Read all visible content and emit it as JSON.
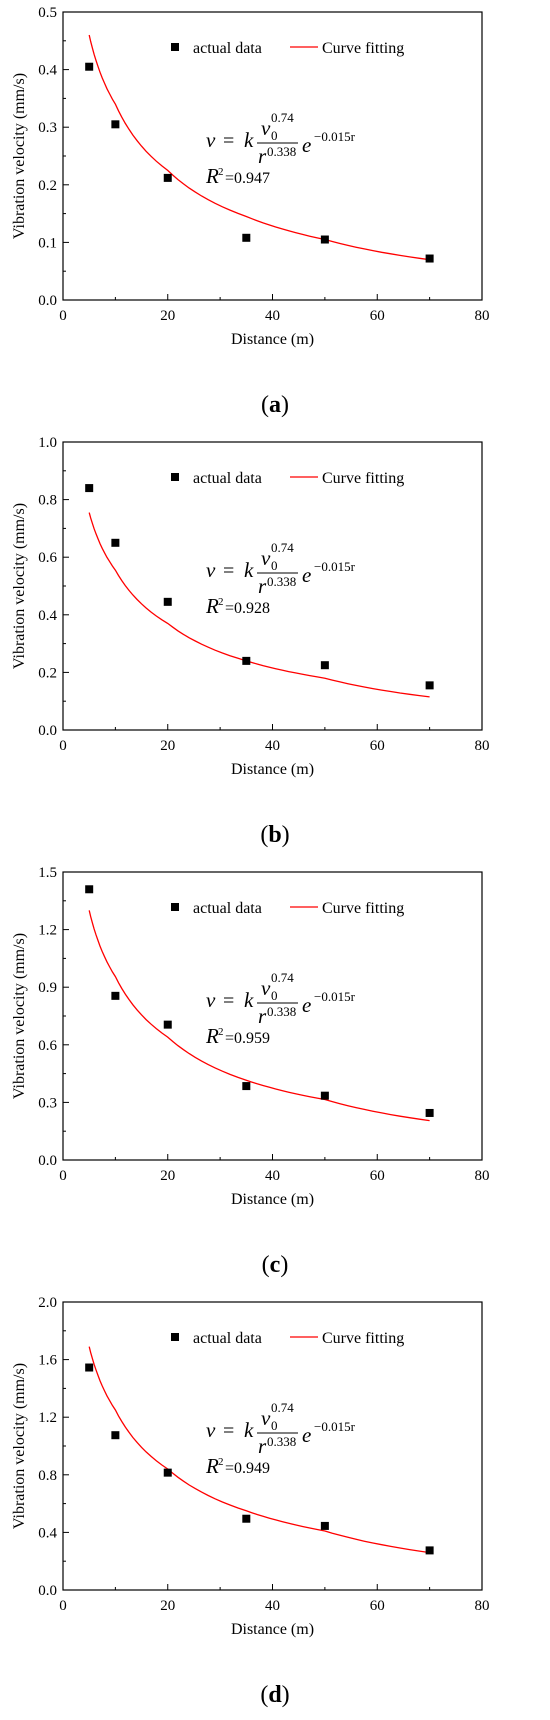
{
  "chart_data": [
    {
      "type": "scatter",
      "panel_label": "a",
      "xlabel": "Distance (m)",
      "ylabel": "Vibration velocity (mm/s)",
      "xlim": [
        0,
        80
      ],
      "ylim": [
        0,
        0.5
      ],
      "xticks": [
        "0",
        "20",
        "40",
        "60",
        "80"
      ],
      "yticks": [
        "0.0",
        "0.1",
        "0.2",
        "0.3",
        "0.4",
        "0.5"
      ],
      "legend_position": "top-right",
      "legend": [
        "actual data",
        "Curve fitting"
      ],
      "series": [
        {
          "name": "actual data",
          "marker": "square",
          "color": "#000000",
          "x": [
            5,
            10,
            20,
            35,
            50,
            70
          ],
          "y": [
            0.405,
            0.305,
            0.212,
            0.108,
            0.105,
            0.072
          ]
        },
        {
          "name": "Curve fitting",
          "line": true,
          "color": "#ff0000",
          "x": [
            5,
            10,
            20,
            35,
            50,
            70
          ],
          "y": [
            0.46,
            0.34,
            0.225,
            0.145,
            0.105,
            0.07
          ]
        }
      ],
      "equation": {
        "v": "v",
        "equals": "=",
        "k": "k",
        "num_base": "v",
        "num_sub": "0",
        "num_exp": "0.74",
        "den_base": "r",
        "den_exp": "0.338",
        "e": "e",
        "e_exp": "−0.015r"
      },
      "r2_label": "R",
      "r2_sup": "2",
      "r2_value": "=0.947"
    },
    {
      "type": "scatter",
      "panel_label": "b",
      "xlabel": "Distance (m)",
      "ylabel": "Vibration velocity (mm/s)",
      "xlim": [
        0,
        80
      ],
      "ylim": [
        0,
        1.0
      ],
      "xticks": [
        "0",
        "20",
        "40",
        "60",
        "80"
      ],
      "yticks": [
        "0.0",
        "0.2",
        "0.4",
        "0.6",
        "0.8",
        "1.0"
      ],
      "legend_position": "top-right",
      "legend": [
        "actual data",
        "Curve fitting"
      ],
      "series": [
        {
          "name": "actual data",
          "marker": "square",
          "color": "#000000",
          "x": [
            5,
            10,
            20,
            35,
            50,
            70
          ],
          "y": [
            0.84,
            0.65,
            0.445,
            0.24,
            0.225,
            0.155
          ]
        },
        {
          "name": "Curve fitting",
          "line": true,
          "color": "#ff0000",
          "x": [
            5,
            10,
            20,
            35,
            50,
            70
          ],
          "y": [
            0.755,
            0.555,
            0.37,
            0.24,
            0.18,
            0.115
          ]
        }
      ],
      "equation": {
        "v": "v",
        "equals": "=",
        "k": "k",
        "num_base": "v",
        "num_sub": "0",
        "num_exp": "0.74",
        "den_base": "r",
        "den_exp": "0.338",
        "e": "e",
        "e_exp": "−0.015r"
      },
      "r2_label": "R",
      "r2_sup": "2",
      "r2_value": "=0.928"
    },
    {
      "type": "scatter",
      "panel_label": "c",
      "xlabel": "Distance (m)",
      "ylabel": "Vibration velocity (mm/s)",
      "xlim": [
        0,
        80
      ],
      "ylim": [
        0,
        1.5
      ],
      "xticks": [
        "0",
        "20",
        "40",
        "60",
        "80"
      ],
      "yticks": [
        "0.0",
        "0.3",
        "0.6",
        "0.9",
        "1.2",
        "1.5"
      ],
      "legend_position": "top-right",
      "legend": [
        "actual data",
        "Curve fitting"
      ],
      "series": [
        {
          "name": "actual data",
          "marker": "square",
          "color": "#000000",
          "x": [
            5,
            10,
            20,
            35,
            50,
            70
          ],
          "y": [
            1.41,
            0.855,
            0.705,
            0.385,
            0.335,
            0.245
          ]
        },
        {
          "name": "Curve fitting",
          "line": true,
          "color": "#ff0000",
          "x": [
            5,
            10,
            20,
            35,
            50,
            70
          ],
          "y": [
            1.3,
            0.955,
            0.64,
            0.415,
            0.315,
            0.205
          ]
        }
      ],
      "equation": {
        "v": "v",
        "equals": "=",
        "k": "k",
        "num_base": "v",
        "num_sub": "0",
        "num_exp": "0.74",
        "den_base": "r",
        "den_exp": "0.338",
        "e": "e",
        "e_exp": "−0.015r"
      },
      "r2_label": "R",
      "r2_sup": "2",
      "r2_value": "=0.959"
    },
    {
      "type": "scatter",
      "panel_label": "d",
      "xlabel": "Distance (m)",
      "ylabel": "Vibration velocity (mm/s)",
      "xlim": [
        0,
        80
      ],
      "ylim": [
        0,
        2.0
      ],
      "xticks": [
        "0",
        "20",
        "40",
        "60",
        "80"
      ],
      "yticks": [
        "0.0",
        "0.4",
        "0.8",
        "1.2",
        "1.6",
        "2.0"
      ],
      "legend_position": "top-right",
      "legend": [
        "actual data",
        "Curve fitting"
      ],
      "series": [
        {
          "name": "actual data",
          "marker": "square",
          "color": "#000000",
          "x": [
            5,
            10,
            20,
            35,
            50,
            70
          ],
          "y": [
            1.545,
            1.075,
            0.815,
            0.495,
            0.445,
            0.275
          ]
        },
        {
          "name": "Curve fitting",
          "line": true,
          "color": "#ff0000",
          "x": [
            5,
            10,
            20,
            35,
            50,
            70
          ],
          "y": [
            1.69,
            1.25,
            0.84,
            0.55,
            0.41,
            0.26
          ]
        }
      ],
      "equation": {
        "v": "v",
        "equals": "=",
        "k": "k",
        "num_base": "v",
        "num_sub": "0",
        "num_exp": "0.74",
        "den_base": "r",
        "den_exp": "0.338",
        "e": "e",
        "e_exp": "−0.015r"
      },
      "r2_label": "R",
      "r2_sup": "2",
      "r2_value": "=0.949"
    }
  ]
}
